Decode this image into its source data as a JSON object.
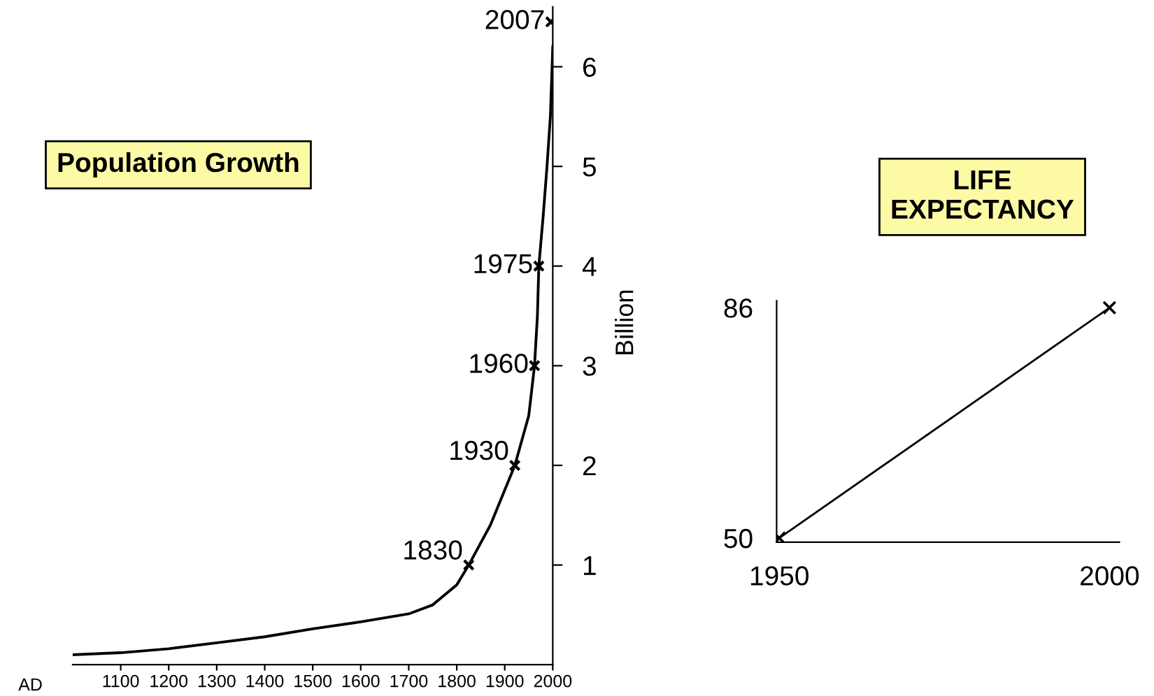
{
  "chart_data": [
    {
      "type": "line",
      "title": "Population Growth",
      "ylabel": "Billion",
      "xlim": [
        1000,
        2000
      ],
      "ylim": [
        0,
        6.6
      ],
      "xticks": [
        1100,
        1200,
        1300,
        1400,
        1500,
        1600,
        1700,
        1800,
        1900,
        2000
      ],
      "yticks": [
        1,
        2,
        3,
        4,
        5,
        6
      ],
      "grid": false,
      "legend": false,
      "series": [
        {
          "color": "#000000",
          "marker": "none",
          "x": [
            1000,
            1100,
            1200,
            1300,
            1400,
            1500,
            1600,
            1700,
            1750,
            1800,
            1825,
            1870,
            1921,
            1950,
            1962,
            1968,
            1971,
            1980,
            1988,
            1995,
            2000
          ],
          "values": [
            0.1,
            0.12,
            0.16,
            0.22,
            0.28,
            0.36,
            0.43,
            0.51,
            0.6,
            0.8,
            1,
            1.4,
            2,
            2.5,
            3,
            3.5,
            4,
            4.5,
            5,
            5.5,
            6.2
          ]
        },
        {
          "type": "scatter",
          "color": "#000000",
          "marker": "cross",
          "x": [
            1825,
            1921,
            1962,
            1971,
            1996
          ],
          "values": [
            1,
            2,
            3,
            4,
            6.45
          ]
        }
      ],
      "annotations": [
        "AD",
        {
          "text": "1830",
          "x": 1825,
          "y": 1
        },
        {
          "text": "1930",
          "x": 1921,
          "y": 2
        },
        {
          "text": "1960",
          "x": 1962,
          "y": 3
        },
        {
          "text": "1975",
          "x": 1971,
          "y": 4
        },
        {
          "text": "2007",
          "x": 1996,
          "y": 6.45
        }
      ]
    },
    {
      "type": "line",
      "title": "LIFE\nEXPECTANCY",
      "xlim": [
        1949.6,
        2001.5
      ],
      "ylim": [
        49.35,
        87.1
      ],
      "xticks": [
        1950,
        2000
      ],
      "yticks": [
        50,
        86
      ],
      "grid": false,
      "legend": false,
      "series": [
        {
          "color": "#000000",
          "marker": "cross",
          "x": [
            1950,
            2000
          ],
          "values": [
            50,
            86
          ]
        }
      ]
    }
  ]
}
